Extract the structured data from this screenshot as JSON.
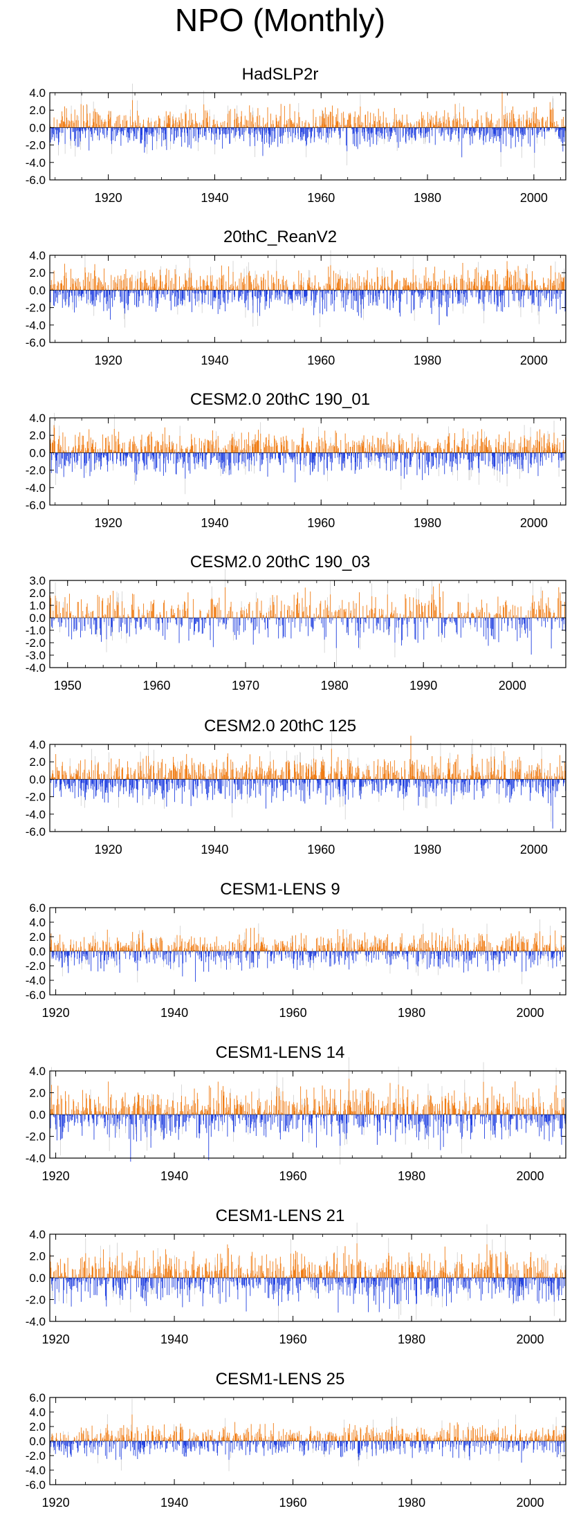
{
  "figure": {
    "title": "NPO (Monthly)"
  },
  "colors": {
    "positive": "#f07a10",
    "negative": "#1f3fe0",
    "trace": "#bdbdbd",
    "axis": "#000000"
  },
  "chart_data": [
    {
      "type": "bar",
      "title": "HadSLP2r",
      "x_range": [
        1909,
        2006
      ],
      "ylim": [
        -6.0,
        4.0
      ],
      "y_ticks": [
        4.0,
        2.0,
        0.0,
        -2.0,
        -4.0,
        -6.0
      ],
      "y_tick_labels": [
        "4.0",
        "2.0",
        "0.0",
        "-2.0",
        "-4.0",
        "-6.0"
      ],
      "x_ticks": [
        1920,
        1940,
        1960,
        1980,
        2000
      ],
      "x_tick_labels": [
        "1920",
        "1940",
        "1960",
        "1980",
        "2000"
      ],
      "series": [
        {
          "values_description_only": false,
          "amplitude": 1.8
        }
      ]
    },
    {
      "type": "bar",
      "title": "20thC_ReanV2",
      "x_range": [
        1909,
        2006
      ],
      "ylim": [
        -6.0,
        4.0
      ],
      "y_ticks": [
        4.0,
        2.0,
        0.0,
        -2.0,
        -4.0,
        -6.0
      ],
      "y_tick_labels": [
        "4.0",
        "2.0",
        "0.0",
        "-2.0",
        "-4.0",
        "-6.0"
      ],
      "x_ticks": [
        1920,
        1940,
        1960,
        1980,
        2000
      ],
      "x_tick_labels": [
        "1920",
        "1940",
        "1960",
        "1980",
        "2000"
      ],
      "series": [
        {
          "amplitude": 2.0
        }
      ]
    },
    {
      "type": "bar",
      "title": "CESM2.0 20thC 190_01",
      "x_range": [
        1909,
        2006
      ],
      "ylim": [
        -6.0,
        4.0
      ],
      "y_ticks": [
        4.0,
        2.0,
        0.0,
        -2.0,
        -4.0,
        -6.0
      ],
      "y_tick_labels": [
        "4.0",
        "2.0",
        "0.0",
        "-2.0",
        "-4.0",
        "-6.0"
      ],
      "x_ticks": [
        1920,
        1940,
        1960,
        1980,
        2000
      ],
      "x_tick_labels": [
        "1920",
        "1940",
        "1960",
        "1980",
        "2000"
      ],
      "series": [
        {
          "amplitude": 2.0
        }
      ]
    },
    {
      "type": "bar",
      "title": "CESM2.0 20thC 190_03",
      "x_range": [
        1948,
        2006
      ],
      "ylim": [
        -4.0,
        3.0
      ],
      "y_ticks": [
        3.0,
        2.0,
        1.0,
        0.0,
        -1.0,
        -2.0,
        -3.0,
        -4.0
      ],
      "y_tick_labels": [
        "3.0",
        "2.0",
        "1.0",
        "0.0",
        "-1.0",
        "-2.0",
        "-3.0",
        "-4.0"
      ],
      "x_ticks": [
        1950,
        1960,
        1970,
        1980,
        1990,
        2000
      ],
      "x_tick_labels": [
        "1950",
        "1960",
        "1970",
        "1980",
        "1990",
        "2000"
      ],
      "series": [
        {
          "amplitude": 1.6
        }
      ]
    },
    {
      "type": "bar",
      "title": "CESM2.0 20thC 125",
      "x_range": [
        1909,
        2006
      ],
      "ylim": [
        -6.0,
        4.0
      ],
      "y_ticks": [
        4.0,
        2.0,
        0.0,
        -2.0,
        -4.0,
        -6.0
      ],
      "y_tick_labels": [
        "4.0",
        "2.0",
        "0.0",
        "-2.0",
        "-4.0",
        "-6.0"
      ],
      "x_ticks": [
        1920,
        1940,
        1960,
        1980,
        2000
      ],
      "x_tick_labels": [
        "1920",
        "1940",
        "1960",
        "1980",
        "2000"
      ],
      "series": [
        {
          "amplitude": 2.0
        }
      ]
    },
    {
      "type": "bar",
      "title": "CESM1-LENS 9",
      "x_range": [
        1919,
        2006
      ],
      "ylim": [
        -6.0,
        6.0
      ],
      "y_ticks": [
        6.0,
        4.0,
        2.0,
        0.0,
        -2.0,
        -4.0,
        -6.0
      ],
      "y_tick_labels": [
        "6.0",
        "4.0",
        "2.0",
        "0.0",
        "-2.0",
        "-4.0",
        "-6.0"
      ],
      "x_ticks": [
        1920,
        1940,
        1960,
        1980,
        2000
      ],
      "x_tick_labels": [
        "1920",
        "1940",
        "1960",
        "1980",
        "2000"
      ],
      "series": [
        {
          "amplitude": 2.0
        }
      ]
    },
    {
      "type": "bar",
      "title": "CESM1-LENS 14",
      "x_range": [
        1919,
        2006
      ],
      "ylim": [
        -4.0,
        4.0
      ],
      "y_ticks": [
        4.0,
        2.0,
        0.0,
        -2.0,
        -4.0
      ],
      "y_tick_labels": [
        "4.0",
        "2.0",
        "0.0",
        "-2.0",
        "-4.0"
      ],
      "x_ticks": [
        1920,
        1940,
        1960,
        1980,
        2000
      ],
      "x_tick_labels": [
        "1920",
        "1940",
        "1960",
        "1980",
        "2000"
      ],
      "series": [
        {
          "amplitude": 1.9
        }
      ]
    },
    {
      "type": "bar",
      "title": "CESM1-LENS 21",
      "x_range": [
        1919,
        2006
      ],
      "ylim": [
        -4.0,
        4.0
      ],
      "y_ticks": [
        4.0,
        2.0,
        0.0,
        -2.0,
        -4.0
      ],
      "y_tick_labels": [
        "4.0",
        "2.0",
        "0.0",
        "-2.0",
        "-4.0"
      ],
      "x_ticks": [
        1920,
        1940,
        1960,
        1980,
        2000
      ],
      "x_tick_labels": [
        "1920",
        "1940",
        "1960",
        "1980",
        "2000"
      ],
      "series": [
        {
          "amplitude": 1.9
        }
      ]
    },
    {
      "type": "bar",
      "title": "CESM1-LENS 25",
      "x_range": [
        1919,
        2006
      ],
      "ylim": [
        -6.0,
        6.0
      ],
      "y_ticks": [
        6.0,
        4.0,
        2.0,
        0.0,
        -2.0,
        -4.0,
        -6.0
      ],
      "y_tick_labels": [
        "6.0",
        "4.0",
        "2.0",
        "0.0",
        "-2.0",
        "-4.0",
        "-6.0"
      ],
      "x_ticks": [
        1920,
        1940,
        1960,
        1980,
        2000
      ],
      "x_tick_labels": [
        "1920",
        "1940",
        "1960",
        "1980",
        "2000"
      ],
      "series": [
        {
          "amplitude": 1.7
        }
      ]
    }
  ]
}
